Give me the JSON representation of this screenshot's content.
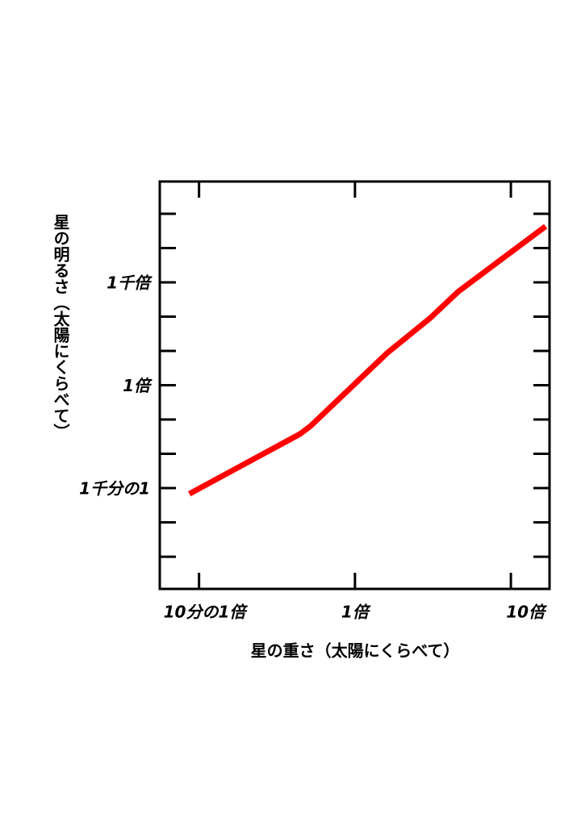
{
  "chart_data": {
    "type": "line",
    "x_label": "星の重さ（太陽にくらべて）",
    "y_label": "星の明るさ（太陽にくらべて）",
    "x_log": true,
    "y_log": true,
    "xlim": [
      0.056,
      17.7
    ],
    "ylim": [
      1.15e-06,
      870000
    ],
    "xticks": [
      {
        "value": 0.1,
        "label": "10分の1倍"
      },
      {
        "value": 1,
        "label": "1倍"
      },
      {
        "value": 10,
        "label": "10倍"
      }
    ],
    "yticks": [
      {
        "value": 0.001,
        "label": "1千分の1"
      },
      {
        "value": 1,
        "label": "1倍"
      },
      {
        "value": 1000,
        "label": "1千倍"
      }
    ],
    "yminor_ticks": [
      1e-05,
      0.0001,
      0.01,
      0.1,
      10,
      100,
      10000,
      100000
    ],
    "series": [
      {
        "color": "#ff0000",
        "x": [
          0.0867,
          0.445,
          0.52,
          1.61,
          3.03,
          4.6,
          16.7
        ],
        "values": [
          0.00068,
          0.038,
          0.065,
          8.7,
          90,
          537,
          43000
        ]
      }
    ]
  }
}
